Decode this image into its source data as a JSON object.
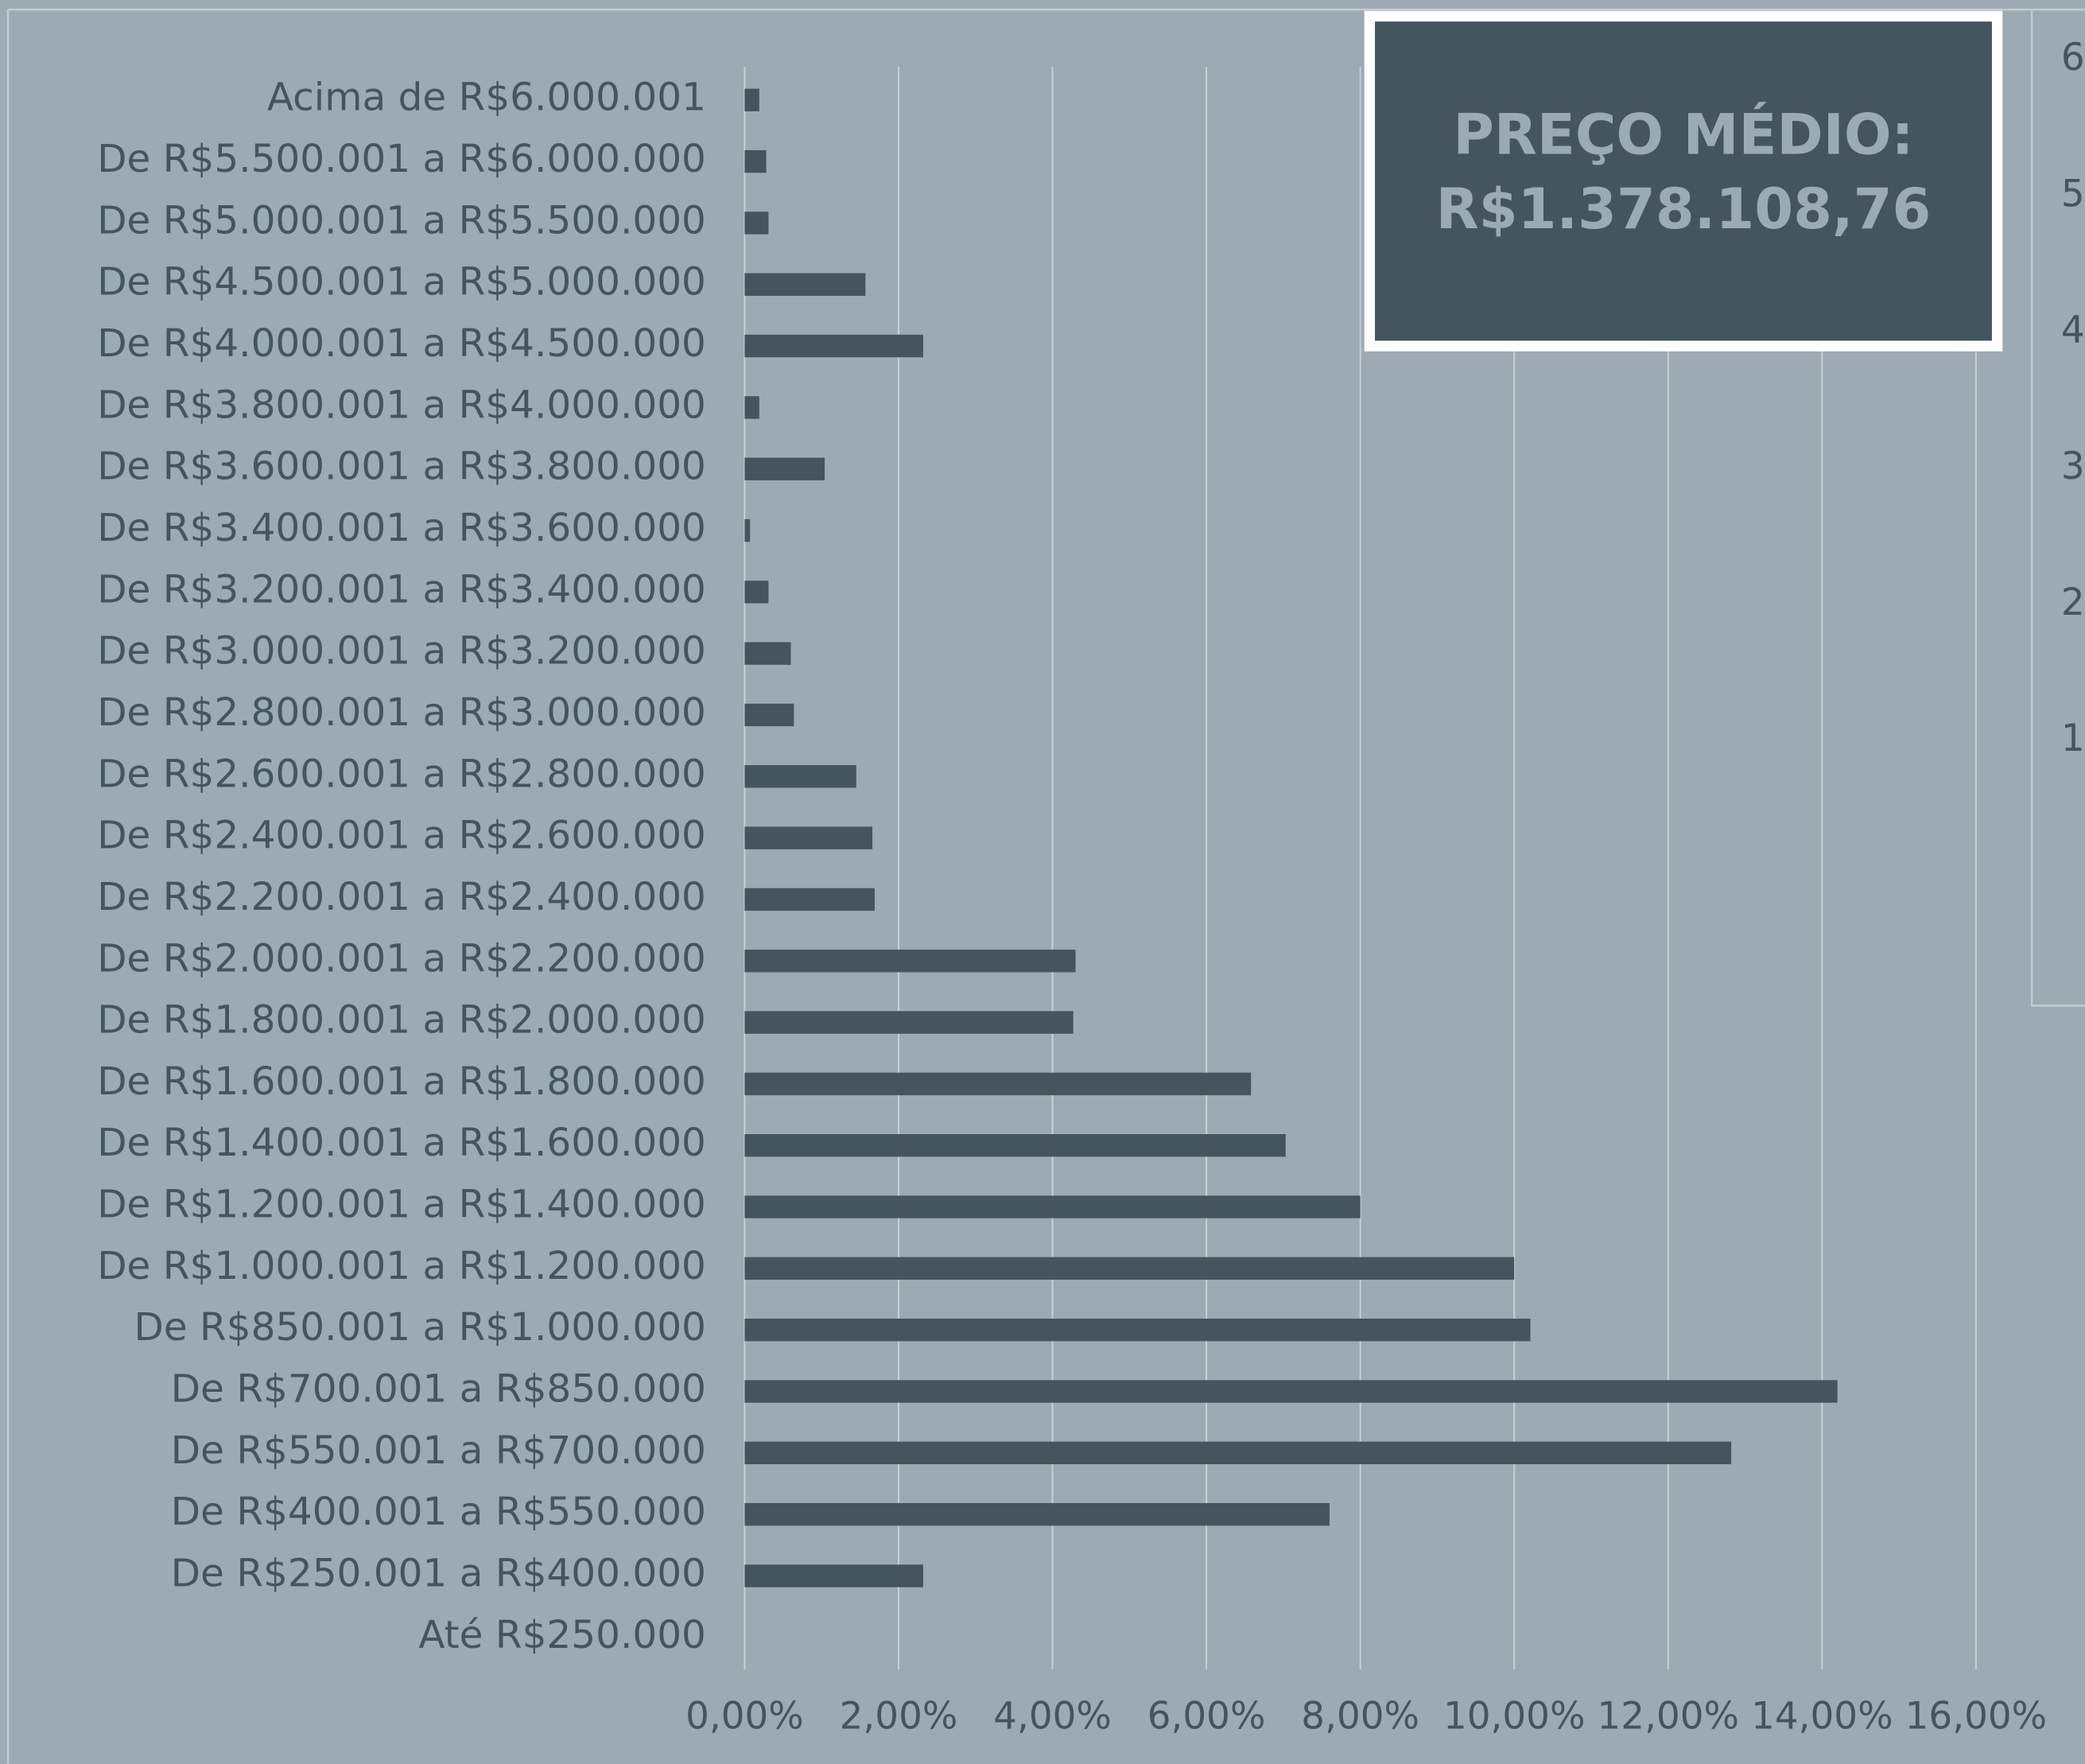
{
  "chart_data": {
    "type": "bar",
    "orientation": "horizontal",
    "categories": [
      "Acima de R$6.000.001",
      "De R$5.500.001 a R$6.000.000",
      "De R$5.000.001 a R$5.500.000",
      "De R$4.500.001 a R$5.000.000",
      "De R$4.000.001 a R$4.500.000",
      "De R$3.800.001 a R$4.000.000",
      "De R$3.600.001 a R$3.800.000",
      "De R$3.400.001 a R$3.600.000",
      "De R$3.200.001 a R$3.400.000",
      "De R$3.000.001 a R$3.200.000",
      "De R$2.800.001 a R$3.000.000",
      "De R$2.600.001 a R$2.800.000",
      "De R$2.400.001 a R$2.600.000",
      "De R$2.200.001 a R$2.400.000",
      "De R$2.000.001 a R$2.200.000",
      "De R$1.800.001 a R$2.000.000",
      "De R$1.600.001 a R$1.800.000",
      "De R$1.400.001 a R$1.600.000",
      "De R$1.200.001 a R$1.400.000",
      "De R$1.000.001 a R$1.200.000",
      "De R$850.001 a R$1.000.000",
      "De R$700.001 a R$850.000",
      "De R$550.001 a R$700.000",
      "De R$400.001 a R$550.000",
      "De R$250.001 a R$400.000",
      "Até R$250.000"
    ],
    "values": [
      0.19,
      0.28,
      0.31,
      1.57,
      2.32,
      0.19,
      1.04,
      0.07,
      0.31,
      0.6,
      0.64,
      1.45,
      1.66,
      1.69,
      4.3,
      4.27,
      6.58,
      7.03,
      8.0,
      10.0,
      10.21,
      14.2,
      12.82,
      7.6,
      2.32,
      0
    ],
    "color": "#44555f",
    "xlim": [
      0,
      16
    ],
    "xticks": [
      {
        "value": 0,
        "label": "0,00%"
      },
      {
        "value": 2,
        "label": "2,00%"
      },
      {
        "value": 4,
        "label": "4,00%"
      },
      {
        "value": 6,
        "label": "6,00%"
      },
      {
        "value": 8,
        "label": "8,00%"
      },
      {
        "value": 10,
        "label": "10,00%"
      },
      {
        "value": 12,
        "label": "12,00%"
      },
      {
        "value": 14,
        "label": "14,00%"
      },
      {
        "value": 16,
        "label": "16,00%"
      }
    ],
    "grid": true,
    "annotation": [
      "PREÇO MÉDIO:",
      "R$1.378.108,76"
    ],
    "side_panel_labels": [
      "6",
      "5",
      "4",
      "3",
      "2",
      "1"
    ]
  }
}
